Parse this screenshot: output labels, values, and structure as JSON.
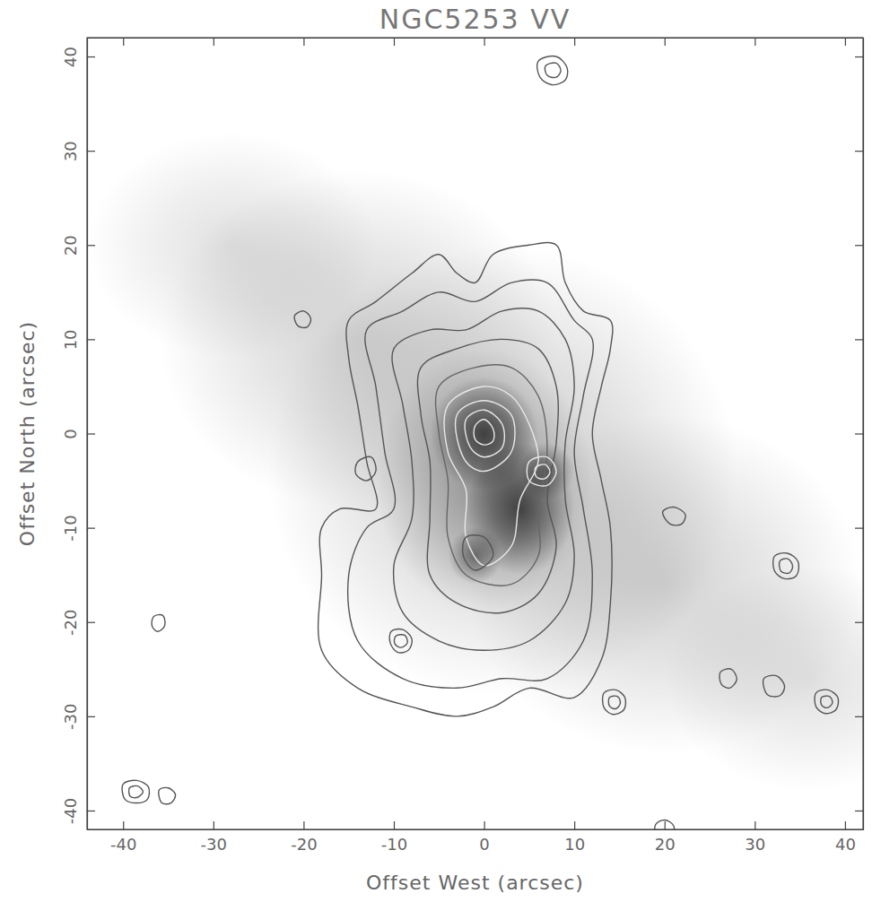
{
  "chart_data": {
    "type": "contour",
    "title": "NGC5253 VV",
    "x_label": "Offset West (arcsec)",
    "y_label": "Offset North (arcsec)",
    "xlim": [
      -44,
      42
    ],
    "ylim": [
      -42,
      42
    ],
    "xticks": [
      -40,
      -30,
      -20,
      -10,
      0,
      10,
      20,
      30,
      40
    ],
    "yticks": [
      -40,
      -30,
      -20,
      -10,
      0,
      10,
      20,
      30,
      40
    ],
    "image": [
      {
        "x": -28,
        "y": 20,
        "sx": 16,
        "sy": 12,
        "peak": 0.12
      },
      {
        "x": -14,
        "y": 10,
        "sx": 22,
        "sy": 18,
        "peak": 0.18
      },
      {
        "x": 2,
        "y": -4,
        "sx": 26,
        "sy": 24,
        "peak": 0.22
      },
      {
        "x": 20,
        "y": -16,
        "sx": 22,
        "sy": 18,
        "peak": 0.18
      },
      {
        "x": 36,
        "y": -26,
        "sx": 16,
        "sy": 12,
        "peak": 0.12
      },
      {
        "x": 0,
        "y": -5,
        "sx": 12,
        "sy": 14,
        "peak": 0.3
      },
      {
        "x": 0,
        "y": 0,
        "sx": 6,
        "sy": 6,
        "peak": 0.6
      },
      {
        "x": 4,
        "y": -8,
        "sx": 6,
        "sy": 7,
        "peak": 0.6
      },
      {
        "x": -1,
        "y": -13,
        "sx": 3,
        "sy": 3,
        "peak": 0.45
      },
      {
        "x": 7,
        "y": -4,
        "sx": 3,
        "sy": 3,
        "peak": 0.4
      }
    ],
    "contours": [
      {
        "color": "#555555",
        "points": [
          [
            -15,
            12
          ],
          [
            -12,
            14
          ],
          [
            -8,
            17
          ],
          [
            -5,
            19
          ],
          [
            -3,
            17
          ],
          [
            -1,
            16
          ],
          [
            1,
            19
          ],
          [
            5,
            20
          ],
          [
            8,
            20
          ],
          [
            9,
            16
          ],
          [
            11,
            13
          ],
          [
            14,
            12
          ],
          [
            14,
            9
          ],
          [
            13,
            5
          ],
          [
            12,
            0
          ],
          [
            13,
            -5
          ],
          [
            14,
            -10
          ],
          [
            14,
            -18
          ],
          [
            13,
            -24
          ],
          [
            10,
            -28
          ],
          [
            5,
            -27
          ],
          [
            1,
            -29
          ],
          [
            -3,
            -30
          ],
          [
            -8,
            -29
          ],
          [
            -14,
            -27
          ],
          [
            -18,
            -23
          ],
          [
            -18,
            -15
          ],
          [
            -18,
            -10
          ],
          [
            -16,
            -8
          ],
          [
            -12,
            -8
          ],
          [
            -13,
            -3
          ],
          [
            -14,
            3
          ],
          [
            -15,
            8
          ]
        ]
      },
      {
        "color": "#555555",
        "points": [
          [
            -13,
            11
          ],
          [
            -9,
            13
          ],
          [
            -5,
            15
          ],
          [
            -1,
            14
          ],
          [
            3,
            16
          ],
          [
            7,
            16
          ],
          [
            10,
            12
          ],
          [
            12,
            10
          ],
          [
            11,
            4
          ],
          [
            10,
            -2
          ],
          [
            11,
            -8
          ],
          [
            12,
            -15
          ],
          [
            11,
            -22
          ],
          [
            7,
            -26
          ],
          [
            2,
            -26
          ],
          [
            -3,
            -27
          ],
          [
            -9,
            -26
          ],
          [
            -14,
            -22
          ],
          [
            -15,
            -15
          ],
          [
            -13,
            -10
          ],
          [
            -10,
            -8
          ],
          [
            -11,
            -2
          ],
          [
            -12,
            5
          ]
        ]
      },
      {
        "color": "#555555",
        "points": [
          [
            -10,
            9
          ],
          [
            -6,
            11
          ],
          [
            -2,
            11
          ],
          [
            2,
            13
          ],
          [
            6,
            13
          ],
          [
            9,
            10
          ],
          [
            10,
            5
          ],
          [
            9,
            -1
          ],
          [
            9,
            -7
          ],
          [
            10,
            -13
          ],
          [
            9,
            -18
          ],
          [
            5,
            -22
          ],
          [
            0,
            -23
          ],
          [
            -5,
            -22
          ],
          [
            -9,
            -19
          ],
          [
            -10,
            -14
          ],
          [
            -8,
            -9
          ],
          [
            -8,
            -3
          ],
          [
            -9,
            3
          ]
        ]
      },
      {
        "color": "#555555",
        "points": [
          [
            -7,
            7
          ],
          [
            -3,
            9
          ],
          [
            2,
            10
          ],
          [
            6,
            9
          ],
          [
            8,
            5
          ],
          [
            8,
            -1
          ],
          [
            7,
            -7
          ],
          [
            8,
            -12
          ],
          [
            6,
            -17
          ],
          [
            2,
            -19
          ],
          [
            -3,
            -18
          ],
          [
            -6,
            -15
          ],
          [
            -6,
            -9
          ],
          [
            -6,
            -3
          ],
          [
            -7,
            2
          ]
        ]
      },
      {
        "color": "#666666",
        "points": [
          [
            -5,
            5
          ],
          [
            -1,
            7
          ],
          [
            3,
            7
          ],
          [
            6,
            4
          ],
          [
            7,
            -2
          ],
          [
            6,
            -8
          ],
          [
            6,
            -13
          ],
          [
            3,
            -16
          ],
          [
            -2,
            -15
          ],
          [
            -4,
            -11
          ],
          [
            -4,
            -5
          ],
          [
            -5,
            0
          ]
        ]
      },
      {
        "color": "#e8e8e8",
        "points": [
          [
            -4,
            3
          ],
          [
            0,
            5
          ],
          [
            3,
            4
          ],
          [
            5,
            1
          ],
          [
            6,
            -3
          ],
          [
            4,
            -7
          ],
          [
            3,
            -12
          ],
          [
            0,
            -14
          ],
          [
            -2,
            -11
          ],
          [
            -2,
            -6
          ],
          [
            -4,
            -2
          ]
        ]
      },
      {
        "color": "#e8e8e8",
        "points": [
          [
            -3,
            2
          ],
          [
            0,
            3.5
          ],
          [
            3,
            2
          ],
          [
            3,
            -2
          ],
          [
            0,
            -4
          ],
          [
            -2,
            -3
          ]
        ]
      },
      {
        "color": "#e8e8e8",
        "points": [
          [
            -2,
            1.5
          ],
          [
            0,
            2.5
          ],
          [
            2,
            1
          ],
          [
            2,
            -1.5
          ],
          [
            0,
            -2.5
          ],
          [
            -1.5,
            -1.5
          ]
        ]
      },
      {
        "color": "#e8e8e8",
        "points": [
          [
            -1,
            0.8
          ],
          [
            0,
            1.5
          ],
          [
            1,
            0.5
          ],
          [
            1,
            -0.8
          ],
          [
            0,
            -1.2
          ],
          [
            -1,
            -0.6
          ]
        ]
      },
      {
        "color": "#e8e8e8",
        "points": [
          [
            5,
            -3
          ],
          [
            7,
            -2.5
          ],
          [
            8,
            -4
          ],
          [
            7,
            -5.5
          ],
          [
            5,
            -5
          ]
        ]
      },
      {
        "color": "#e8e8e8",
        "points": [
          [
            5.7,
            -3.6
          ],
          [
            6.8,
            -3.3
          ],
          [
            7.3,
            -4.1
          ],
          [
            6.7,
            -4.8
          ],
          [
            5.8,
            -4.6
          ]
        ]
      },
      {
        "color": "#555555",
        "points": [
          [
            -2,
            -11
          ],
          [
            0,
            -11
          ],
          [
            1,
            -13
          ],
          [
            -1,
            -14.5
          ],
          [
            -2.3,
            -13
          ]
        ]
      },
      {
        "color": "#555555",
        "points": [
          [
            -14,
            -3
          ],
          [
            -12.5,
            -2.5
          ],
          [
            -12,
            -4
          ],
          [
            -13,
            -5
          ],
          [
            -14.2,
            -4.3
          ]
        ]
      },
      {
        "color": "#555555",
        "points": [
          [
            6,
            39.5
          ],
          [
            8,
            40
          ],
          [
            9.2,
            38.8
          ],
          [
            9,
            37.5
          ],
          [
            7.5,
            37
          ],
          [
            6.2,
            37.8
          ]
        ]
      },
      {
        "color": "#555555",
        "points": [
          [
            6.8,
            39
          ],
          [
            8,
            39.3
          ],
          [
            8.5,
            38.5
          ],
          [
            8,
            37.8
          ],
          [
            7,
            38
          ]
        ]
      },
      {
        "color": "#555555",
        "points": [
          [
            -21,
            12.5
          ],
          [
            -20,
            13
          ],
          [
            -19.2,
            12.2
          ],
          [
            -19.6,
            11.3
          ],
          [
            -20.6,
            11.4
          ]
        ]
      },
      {
        "color": "#555555",
        "points": [
          [
            -36.6,
            -19.4
          ],
          [
            -35.6,
            -19.3
          ],
          [
            -35.4,
            -20.4
          ],
          [
            -36.2,
            -21
          ],
          [
            -36.8,
            -20.4
          ]
        ]
      },
      {
        "color": "#555555",
        "points": [
          [
            -40,
            -37.2
          ],
          [
            -38.5,
            -36.8
          ],
          [
            -37.2,
            -37.5
          ],
          [
            -37.3,
            -38.8
          ],
          [
            -38.5,
            -39.2
          ],
          [
            -39.8,
            -38.8
          ]
        ]
      },
      {
        "color": "#555555",
        "points": [
          [
            -39.3,
            -37.6
          ],
          [
            -38.4,
            -37.4
          ],
          [
            -37.8,
            -38
          ],
          [
            -38.4,
            -38.6
          ],
          [
            -39.2,
            -38.5
          ]
        ]
      },
      {
        "color": "#555555",
        "points": [
          [
            -36,
            -37.8
          ],
          [
            -35,
            -37.6
          ],
          [
            -34.2,
            -38.3
          ],
          [
            -34.7,
            -39.2
          ],
          [
            -35.7,
            -39.2
          ]
        ]
      },
      {
        "color": "#555555",
        "points": [
          [
            -10.3,
            -21
          ],
          [
            -9,
            -20.8
          ],
          [
            -8,
            -21.8
          ],
          [
            -8.4,
            -23
          ],
          [
            -9.6,
            -23.2
          ],
          [
            -10.4,
            -22.2
          ]
        ]
      },
      {
        "color": "#555555",
        "points": [
          [
            -9.8,
            -21.5
          ],
          [
            -8.8,
            -21.4
          ],
          [
            -8.5,
            -22.2
          ],
          [
            -9.2,
            -22.7
          ],
          [
            -9.9,
            -22.3
          ]
        ]
      },
      {
        "color": "#555555",
        "points": [
          [
            13.3,
            -27.5
          ],
          [
            14.6,
            -27.2
          ],
          [
            15.6,
            -28
          ],
          [
            15.5,
            -29.3
          ],
          [
            14.3,
            -29.8
          ],
          [
            13.3,
            -29.1
          ]
        ]
      },
      {
        "color": "#555555",
        "points": [
          [
            13.9,
            -28
          ],
          [
            14.8,
            -27.9
          ],
          [
            15.1,
            -28.6
          ],
          [
            14.6,
            -29.2
          ],
          [
            13.9,
            -28.9
          ]
        ]
      },
      {
        "color": "#555555",
        "points": [
          [
            19.8,
            -8.3
          ],
          [
            21,
            -7.8
          ],
          [
            22.3,
            -8.6
          ],
          [
            21.9,
            -9.6
          ],
          [
            20.6,
            -9.6
          ]
        ]
      },
      {
        "color": "#555555",
        "points": [
          [
            32.2,
            -13
          ],
          [
            33.6,
            -12.7
          ],
          [
            34.8,
            -13.6
          ],
          [
            34.6,
            -15.1
          ],
          [
            33.3,
            -15.4
          ],
          [
            32.2,
            -14.6
          ]
        ]
      },
      {
        "color": "#555555",
        "points": [
          [
            32.8,
            -13.5
          ],
          [
            33.7,
            -13.3
          ],
          [
            34.2,
            -14.1
          ],
          [
            33.8,
            -14.8
          ],
          [
            32.9,
            -14.6
          ]
        ]
      },
      {
        "color": "#555555",
        "points": [
          [
            26.2,
            -25.3
          ],
          [
            27.4,
            -25
          ],
          [
            28,
            -26.1
          ],
          [
            27.2,
            -27
          ],
          [
            26.3,
            -26.6
          ]
        ]
      },
      {
        "color": "#555555",
        "points": [
          [
            31,
            -26
          ],
          [
            32.4,
            -25.7
          ],
          [
            33.3,
            -26.8
          ],
          [
            32.8,
            -27.8
          ],
          [
            31.4,
            -27.7
          ]
        ]
      },
      {
        "color": "#555555",
        "points": [
          [
            36.8,
            -27.5
          ],
          [
            38.1,
            -27.2
          ],
          [
            39.2,
            -28
          ],
          [
            39,
            -29.3
          ],
          [
            37.8,
            -29.7
          ],
          [
            36.8,
            -29
          ]
        ]
      },
      {
        "color": "#555555",
        "points": [
          [
            37.4,
            -28
          ],
          [
            38.3,
            -27.9
          ],
          [
            38.6,
            -28.6
          ],
          [
            38,
            -29.1
          ],
          [
            37.4,
            -28.8
          ]
        ]
      },
      {
        "color": "#555555",
        "points": [
          [
            19,
            -41.5
          ],
          [
            20,
            -41
          ],
          [
            21,
            -41.6
          ],
          [
            20.8,
            -43
          ],
          [
            19.2,
            -43
          ]
        ]
      }
    ]
  }
}
